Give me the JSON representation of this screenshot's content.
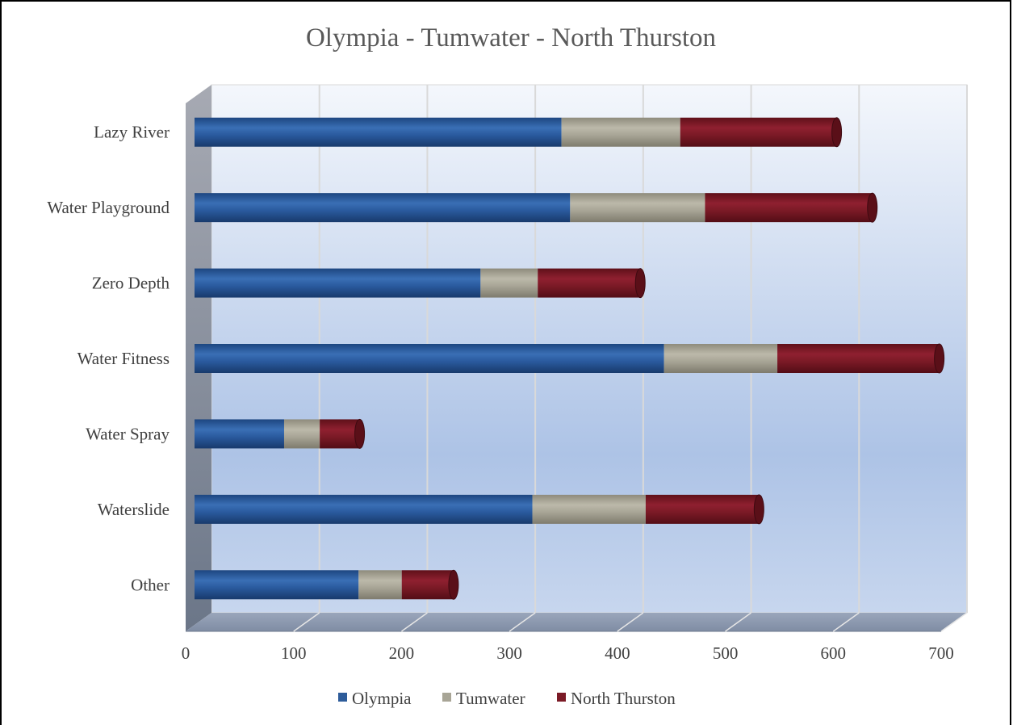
{
  "chart_data": {
    "type": "bar",
    "orientation": "horizontal",
    "stacked": true,
    "title": "Olympia - Tumwater - North Thurston",
    "categories": [
      "Lazy River",
      "Water Playground",
      "Zero Depth",
      "Water Fitness",
      "Water Spray",
      "Waterslide",
      "Other"
    ],
    "series": [
      {
        "name": "Olympia",
        "values": [
          340,
          348,
          265,
          435,
          83,
          313,
          152
        ],
        "color": "#2E5C9A"
      },
      {
        "name": "Tumwater",
        "values": [
          110,
          125,
          53,
          105,
          33,
          105,
          40
        ],
        "color": "#A8A596"
      },
      {
        "name": "North Thurston",
        "values": [
          145,
          155,
          95,
          150,
          37,
          105,
          48
        ],
        "color": "#7B1A26"
      }
    ],
    "xlim": [
      0,
      700
    ],
    "xticks": [
      "0",
      "100",
      "200",
      "300",
      "400",
      "500",
      "600",
      "700"
    ],
    "grid": true,
    "legend": "bottom",
    "style": "3d-cylinder"
  }
}
